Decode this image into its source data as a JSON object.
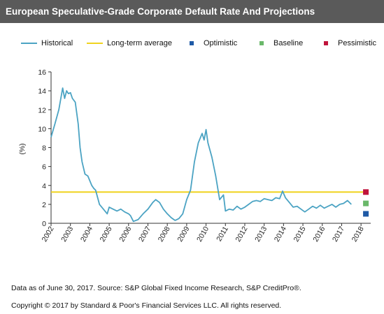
{
  "header": {
    "title": "European Speculative-Grade Corporate Default Rate And Projections"
  },
  "colors": {
    "historical": "#4ba3c3",
    "long_term": "#f0d31e",
    "optimistic": "#1f5aa6",
    "baseline": "#6ab86a",
    "pessimistic": "#c0143c"
  },
  "legend": [
    {
      "label": "Historical",
      "kind": "line",
      "color_key": "historical"
    },
    {
      "label": "Long-term average",
      "kind": "line",
      "color_key": "long_term"
    },
    {
      "label": "Optimistic",
      "kind": "square",
      "color_key": "optimistic"
    },
    {
      "label": "Baseline",
      "kind": "square",
      "color_key": "baseline"
    },
    {
      "label": "Pessimistic",
      "kind": "square",
      "color_key": "pessimistic"
    }
  ],
  "chart_data": {
    "type": "line",
    "ylabel": "(%)",
    "ylim": [
      0,
      16
    ],
    "xlim": [
      2002,
      2018.5
    ],
    "y_ticks": [
      "0",
      "2",
      "4",
      "6",
      "8",
      "10",
      "12",
      "14",
      "16"
    ],
    "x_ticks": [
      "2002",
      "2003",
      "2004",
      "2005",
      "2006",
      "2007",
      "2008",
      "2009",
      "2010",
      "2011",
      "2012",
      "2013",
      "2014",
      "2015",
      "2016",
      "2017",
      "2018"
    ],
    "grid": false,
    "legend_position": "top",
    "series": [
      {
        "name": "Historical",
        "x": [
          2002.0,
          2002.2,
          2002.4,
          2002.6,
          2002.7,
          2002.8,
          2002.9,
          2003.0,
          2003.1,
          2003.25,
          2003.4,
          2003.5,
          2003.6,
          2003.75,
          2003.9,
          2004.0,
          2004.1,
          2004.2,
          2004.3,
          2004.5,
          2004.7,
          2004.9,
          2005.0,
          2005.2,
          2005.4,
          2005.6,
          2005.8,
          2006.0,
          2006.1,
          2006.25,
          2006.5,
          2006.75,
          2007.0,
          2007.25,
          2007.4,
          2007.6,
          2007.8,
          2008.0,
          2008.2,
          2008.4,
          2008.6,
          2008.8,
          2009.0,
          2009.2,
          2009.4,
          2009.6,
          2009.8,
          2009.9,
          2010.0,
          2010.1,
          2010.3,
          2010.5,
          2010.7,
          2010.9,
          2011.0,
          2011.2,
          2011.4,
          2011.6,
          2011.8,
          2012.0,
          2012.2,
          2012.4,
          2012.6,
          2012.8,
          2013.0,
          2013.2,
          2013.4,
          2013.6,
          2013.8,
          2013.95,
          2014.1,
          2014.3,
          2014.5,
          2014.7,
          2014.9,
          2015.1,
          2015.3,
          2015.5,
          2015.7,
          2015.9,
          2016.1,
          2016.3,
          2016.5,
          2016.7,
          2016.9,
          2017.1,
          2017.3,
          2017.5
        ],
        "values": [
          9.1,
          10.5,
          12.0,
          14.3,
          13.2,
          14.0,
          13.7,
          13.8,
          13.2,
          12.8,
          10.5,
          8.0,
          6.5,
          5.2,
          5.0,
          4.5,
          4.0,
          3.7,
          3.5,
          2.0,
          1.5,
          1.0,
          1.7,
          1.5,
          1.3,
          1.5,
          1.2,
          1.0,
          0.8,
          0.2,
          0.4,
          1.0,
          1.5,
          2.2,
          2.5,
          2.2,
          1.5,
          1.0,
          0.6,
          0.3,
          0.5,
          1.0,
          2.5,
          3.5,
          6.5,
          8.5,
          9.5,
          8.8,
          9.9,
          8.5,
          7.0,
          5.0,
          2.5,
          3.0,
          1.3,
          1.5,
          1.4,
          1.8,
          1.5,
          1.7,
          2.0,
          2.3,
          2.4,
          2.3,
          2.6,
          2.5,
          2.4,
          2.7,
          2.6,
          3.4,
          2.7,
          2.2,
          1.7,
          1.8,
          1.5,
          1.2,
          1.5,
          1.8,
          1.6,
          1.9,
          1.6,
          1.8,
          2.0,
          1.7,
          2.0,
          2.1,
          2.4,
          2.0
        ]
      },
      {
        "name": "Long-term average",
        "x": [
          2002,
          2018.2
        ],
        "values": [
          3.3,
          3.3
        ]
      }
    ],
    "projections": [
      {
        "name": "Optimistic",
        "x": 2018.25,
        "value": 1.0
      },
      {
        "name": "Baseline",
        "x": 2018.25,
        "value": 2.1
      },
      {
        "name": "Pessimistic",
        "x": 2018.25,
        "value": 3.3
      }
    ]
  },
  "footer": {
    "note": "Data as of June 30, 2017. Source: S&P Global Fixed Income Research, S&P  CreditPro®.",
    "copyright": "Copyright © 2017 by Standard & Poor's Financial Services LLC. All rights reserved."
  }
}
